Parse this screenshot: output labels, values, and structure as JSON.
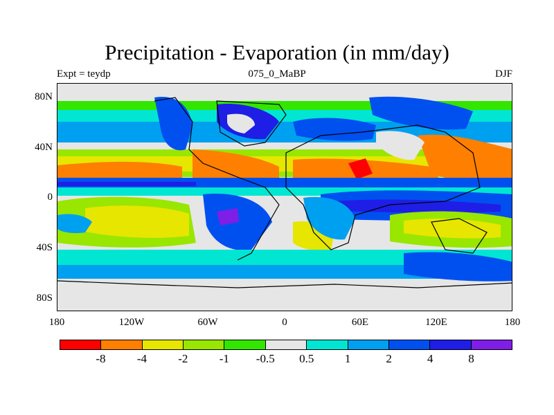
{
  "title": "Precipitation - Evaporation (in mm/day)",
  "subtitle_left": "Expt = teydp",
  "subtitle_center": "075_0_MaBP",
  "subtitle_right": "DJF",
  "y_ticks": [
    "80N",
    "40N",
    "0",
    "40S",
    "80S"
  ],
  "x_ticks": [
    "180",
    "120W",
    "60W",
    "0",
    "60E",
    "120E",
    "180"
  ],
  "colorbar": {
    "colors": [
      "#ff0000",
      "#ff7f00",
      "#e6e600",
      "#99e600",
      "#33e600",
      "#e6e6e6",
      "#00e6d2",
      "#00a0f0",
      "#0050f0",
      "#1e1ee6",
      "#7f1ee6"
    ],
    "labels": [
      "-8",
      "-4",
      "-2",
      "-1",
      "-0.5",
      "0.5",
      "1",
      "2",
      "4",
      "8"
    ]
  },
  "map": {
    "colors": {
      "neutral": "#e6e6e6",
      "strong_dry": "#ff0000",
      "dry": "#ff7f00",
      "yellow": "#e6e600",
      "lime": "#99e600",
      "green": "#33e600",
      "cyan": "#00e6d2",
      "lightblue": "#00a0f0",
      "blue": "#0050f0",
      "darkblue": "#1e1ee6",
      "purple": "#7f1ee6"
    }
  }
}
